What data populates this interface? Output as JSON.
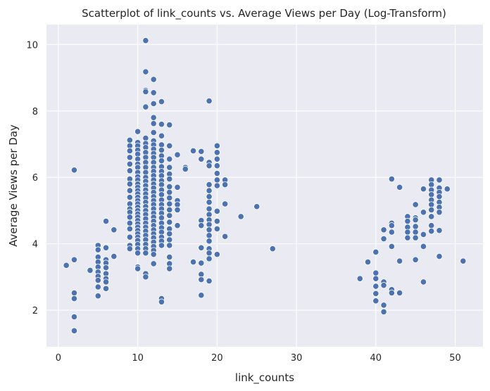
{
  "chart_data": {
    "type": "scatter",
    "title": "Scatterplot of link_counts vs. Average Views per Day (Log-Transform)",
    "xlabel": "link_counts",
    "ylabel": "Average Views per Day",
    "xlim": [
      -1.5,
      53.5
    ],
    "ylim": [
      0.9,
      10.6
    ],
    "xticks": [
      0,
      10,
      20,
      30,
      40,
      50
    ],
    "yticks": [
      2,
      4,
      6,
      8,
      10
    ],
    "grid": true,
    "background": "#eaeaf2",
    "marker_color": "#4c72b0",
    "series": [
      {
        "points": [
          [
            1,
            3.35
          ],
          [
            2,
            6.22
          ],
          [
            2,
            3.52
          ],
          [
            2,
            2.52
          ],
          [
            2,
            2.35
          ],
          [
            2,
            1.8
          ],
          [
            2,
            1.38
          ],
          [
            4,
            3.2
          ],
          [
            5,
            3.95
          ],
          [
            5,
            3.82
          ],
          [
            5,
            3.6
          ],
          [
            5,
            3.45
          ],
          [
            5,
            3.3
          ],
          [
            5,
            3.15
          ],
          [
            5,
            3.02
          ],
          [
            5,
            2.9
          ],
          [
            5,
            2.7
          ],
          [
            5,
            2.43
          ],
          [
            6,
            4.68
          ],
          [
            6,
            3.88
          ],
          [
            6,
            3.52
          ],
          [
            6,
            3.42
          ],
          [
            6,
            3.28
          ],
          [
            6,
            3.1
          ],
          [
            6,
            2.95
          ],
          [
            6,
            2.85
          ],
          [
            6,
            2.65
          ],
          [
            7,
            4.42
          ],
          [
            7,
            3.62
          ],
          [
            9,
            7.12
          ],
          [
            9,
            6.95
          ],
          [
            9,
            6.8
          ],
          [
            9,
            6.6
          ],
          [
            9,
            6.4
          ],
          [
            9,
            6.2
          ],
          [
            9,
            5.95
          ],
          [
            9,
            5.8
          ],
          [
            9,
            5.6
          ],
          [
            9,
            5.4
          ],
          [
            9,
            5.2
          ],
          [
            9,
            5.05
          ],
          [
            9,
            4.95
          ],
          [
            9,
            4.8
          ],
          [
            9,
            4.62
          ],
          [
            9,
            4.45
          ],
          [
            9,
            4.2
          ],
          [
            9,
            3.95
          ],
          [
            9,
            3.85
          ],
          [
            10,
            7.38
          ],
          [
            10,
            7.05
          ],
          [
            10,
            6.95
          ],
          [
            10,
            6.82
          ],
          [
            10,
            6.7
          ],
          [
            10,
            6.55
          ],
          [
            10,
            6.4
          ],
          [
            10,
            6.3
          ],
          [
            10,
            6.15
          ],
          [
            10,
            6.02
          ],
          [
            10,
            5.92
          ],
          [
            10,
            5.8
          ],
          [
            10,
            5.7
          ],
          [
            10,
            5.6
          ],
          [
            10,
            5.5
          ],
          [
            10,
            5.4
          ],
          [
            10,
            5.3
          ],
          [
            10,
            5.2
          ],
          [
            10,
            5.1
          ],
          [
            10,
            5.0
          ],
          [
            10,
            4.9
          ],
          [
            10,
            4.8
          ],
          [
            10,
            4.7
          ],
          [
            10,
            4.6
          ],
          [
            10,
            4.5
          ],
          [
            10,
            4.4
          ],
          [
            10,
            4.3
          ],
          [
            10,
            4.2
          ],
          [
            10,
            4.1
          ],
          [
            10,
            3.98
          ],
          [
            10,
            3.85
          ],
          [
            10,
            3.72
          ],
          [
            10,
            3.3
          ],
          [
            10,
            3.25
          ],
          [
            11,
            10.12
          ],
          [
            11,
            9.18
          ],
          [
            11,
            8.62
          ],
          [
            11,
            8.58
          ],
          [
            11,
            8.12
          ],
          [
            11,
            7.18
          ],
          [
            11,
            7.02
          ],
          [
            11,
            6.9
          ],
          [
            11,
            6.75
          ],
          [
            11,
            6.6
          ],
          [
            11,
            6.45
          ],
          [
            11,
            6.3
          ],
          [
            11,
            6.15
          ],
          [
            11,
            6.0
          ],
          [
            11,
            5.88
          ],
          [
            11,
            5.75
          ],
          [
            11,
            5.62
          ],
          [
            11,
            5.5
          ],
          [
            11,
            5.38
          ],
          [
            11,
            5.25
          ],
          [
            11,
            5.12
          ],
          [
            11,
            5.0
          ],
          [
            11,
            4.88
          ],
          [
            11,
            4.75
          ],
          [
            11,
            4.62
          ],
          [
            11,
            4.5
          ],
          [
            11,
            4.38
          ],
          [
            11,
            4.25
          ],
          [
            11,
            4.12
          ],
          [
            11,
            3.98
          ],
          [
            11,
            3.85
          ],
          [
            11,
            3.72
          ],
          [
            11,
            3.1
          ],
          [
            11,
            3.0
          ],
          [
            12,
            8.95
          ],
          [
            12,
            8.55
          ],
          [
            12,
            8.22
          ],
          [
            12,
            7.8
          ],
          [
            12,
            7.62
          ],
          [
            12,
            7.35
          ],
          [
            12,
            7.1
          ],
          [
            12,
            6.98
          ],
          [
            12,
            6.85
          ],
          [
            12,
            6.72
          ],
          [
            12,
            6.6
          ],
          [
            12,
            6.45
          ],
          [
            12,
            6.3
          ],
          [
            12,
            6.18
          ],
          [
            12,
            6.05
          ],
          [
            12,
            5.92
          ],
          [
            12,
            5.8
          ],
          [
            12,
            5.68
          ],
          [
            12,
            5.55
          ],
          [
            12,
            5.42
          ],
          [
            12,
            5.3
          ],
          [
            12,
            5.18
          ],
          [
            12,
            5.05
          ],
          [
            12,
            4.92
          ],
          [
            12,
            4.8
          ],
          [
            12,
            4.68
          ],
          [
            12,
            4.55
          ],
          [
            12,
            4.42
          ],
          [
            12,
            4.3
          ],
          [
            12,
            4.18
          ],
          [
            12,
            4.05
          ],
          [
            12,
            3.92
          ],
          [
            12,
            3.8
          ],
          [
            12,
            3.68
          ],
          [
            12,
            3.4
          ],
          [
            13,
            8.28
          ],
          [
            13,
            7.6
          ],
          [
            13,
            7.25
          ],
          [
            13,
            6.98
          ],
          [
            13,
            6.82
          ],
          [
            13,
            6.65
          ],
          [
            13,
            6.5
          ],
          [
            13,
            6.32
          ],
          [
            13,
            6.18
          ],
          [
            13,
            6.05
          ],
          [
            13,
            5.9
          ],
          [
            13,
            5.78
          ],
          [
            13,
            5.62
          ],
          [
            13,
            5.48
          ],
          [
            13,
            5.32
          ],
          [
            13,
            5.18
          ],
          [
            13,
            5.05
          ],
          [
            13,
            4.92
          ],
          [
            13,
            4.78
          ],
          [
            13,
            4.62
          ],
          [
            13,
            4.48
          ],
          [
            13,
            4.35
          ],
          [
            13,
            4.2
          ],
          [
            13,
            4.08
          ],
          [
            13,
            3.95
          ],
          [
            13,
            2.35
          ],
          [
            13,
            2.25
          ],
          [
            14,
            7.58
          ],
          [
            14,
            6.95
          ],
          [
            14,
            6.55
          ],
          [
            14,
            6.3
          ],
          [
            14,
            6.1
          ],
          [
            14,
            5.95
          ],
          [
            14,
            5.72
          ],
          [
            14,
            5.55
          ],
          [
            14,
            5.38
          ],
          [
            14,
            5.2
          ],
          [
            14,
            5.02
          ],
          [
            14,
            4.85
          ],
          [
            14,
            4.65
          ],
          [
            14,
            4.45
          ],
          [
            14,
            4.3
          ],
          [
            14,
            4.12
          ],
          [
            14,
            3.95
          ],
          [
            14,
            3.6
          ],
          [
            14,
            3.4
          ],
          [
            14,
            3.25
          ],
          [
            15,
            6.68
          ],
          [
            15,
            5.7
          ],
          [
            15,
            5.3
          ],
          [
            15,
            5.18
          ],
          [
            15,
            5.02
          ],
          [
            15,
            4.55
          ],
          [
            16,
            6.3
          ],
          [
            16,
            6.25
          ],
          [
            17,
            6.8
          ],
          [
            17,
            3.45
          ],
          [
            18,
            6.78
          ],
          [
            18,
            6.55
          ],
          [
            18,
            4.7
          ],
          [
            18,
            4.55
          ],
          [
            18,
            3.88
          ],
          [
            18,
            3.42
          ],
          [
            18,
            3.08
          ],
          [
            18,
            2.92
          ],
          [
            18,
            2.45
          ],
          [
            19,
            8.3
          ],
          [
            19,
            6.45
          ],
          [
            19,
            6.35
          ],
          [
            19,
            5.78
          ],
          [
            19,
            5.6
          ],
          [
            19,
            5.42
          ],
          [
            19,
            5.25
          ],
          [
            19,
            5.05
          ],
          [
            19,
            4.88
          ],
          [
            19,
            4.72
          ],
          [
            19,
            4.58
          ],
          [
            19,
            4.42
          ],
          [
            19,
            4.25
          ],
          [
            19,
            4.08
          ],
          [
            19,
            3.85
          ],
          [
            19,
            3.72
          ],
          [
            19,
            3.55
          ],
          [
            19,
            2.88
          ],
          [
            20,
            6.95
          ],
          [
            20,
            6.75
          ],
          [
            20,
            6.55
          ],
          [
            20,
            6.35
          ],
          [
            20,
            6.12
          ],
          [
            20,
            5.92
          ],
          [
            20,
            5.75
          ],
          [
            20,
            4.98
          ],
          [
            20,
            4.68
          ],
          [
            20,
            4.45
          ],
          [
            20,
            3.68
          ],
          [
            21,
            5.92
          ],
          [
            21,
            5.78
          ],
          [
            21,
            5.2
          ],
          [
            21,
            4.22
          ],
          [
            23,
            4.82
          ],
          [
            25,
            5.12
          ],
          [
            27,
            3.85
          ],
          [
            38,
            2.95
          ],
          [
            39,
            3.45
          ],
          [
            40,
            3.75
          ],
          [
            40,
            3.12
          ],
          [
            40,
            2.95
          ],
          [
            40,
            2.72
          ],
          [
            40,
            2.5
          ],
          [
            40,
            2.28
          ],
          [
            41,
            4.42
          ],
          [
            41,
            4.15
          ],
          [
            41,
            2.85
          ],
          [
            41,
            2.75
          ],
          [
            41,
            2.15
          ],
          [
            41,
            1.95
          ],
          [
            42,
            5.95
          ],
          [
            42,
            4.62
          ],
          [
            42,
            4.55
          ],
          [
            42,
            4.35
          ],
          [
            42,
            3.92
          ],
          [
            42,
            2.62
          ],
          [
            42,
            2.52
          ],
          [
            43,
            5.7
          ],
          [
            43,
            3.48
          ],
          [
            43,
            2.52
          ],
          [
            44,
            4.82
          ],
          [
            44,
            4.68
          ],
          [
            44,
            4.5
          ],
          [
            44,
            4.35
          ],
          [
            44,
            4.18
          ],
          [
            45,
            5.18
          ],
          [
            45,
            4.78
          ],
          [
            45,
            4.72
          ],
          [
            45,
            4.52
          ],
          [
            45,
            4.35
          ],
          [
            45,
            4.18
          ],
          [
            45,
            3.52
          ],
          [
            46,
            5.65
          ],
          [
            46,
            4.95
          ],
          [
            46,
            4.28
          ],
          [
            46,
            3.92
          ],
          [
            46,
            2.85
          ],
          [
            47,
            5.92
          ],
          [
            47,
            5.78
          ],
          [
            47,
            5.62
          ],
          [
            47,
            5.48
          ],
          [
            47,
            5.32
          ],
          [
            47,
            5.18
          ],
          [
            47,
            5.02
          ],
          [
            47,
            4.82
          ],
          [
            47,
            4.55
          ],
          [
            47,
            4.38
          ],
          [
            48,
            5.92
          ],
          [
            48,
            5.68
          ],
          [
            48,
            5.55
          ],
          [
            48,
            5.42
          ],
          [
            48,
            5.25
          ],
          [
            48,
            5.1
          ],
          [
            48,
            4.95
          ],
          [
            48,
            4.4
          ],
          [
            48,
            3.62
          ],
          [
            49,
            5.65
          ],
          [
            51,
            3.48
          ]
        ]
      }
    ]
  }
}
